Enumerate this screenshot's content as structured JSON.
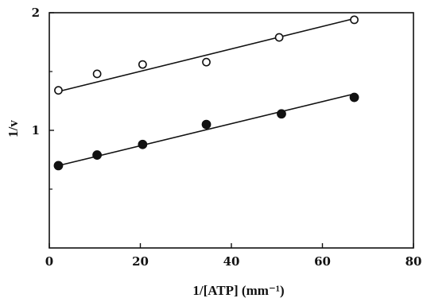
{
  "chart_data": {
    "type": "scatter",
    "xlabel": "1/[ATP] (mm⁻¹)",
    "ylabel": "1/v",
    "xlim": [
      0,
      80
    ],
    "ylim": [
      0,
      2
    ],
    "x_ticks": [
      0,
      20,
      40,
      60,
      80
    ],
    "x_tick_labels": [
      "0",
      "20",
      "40",
      "60",
      "80"
    ],
    "y_ticks": [
      1,
      2
    ],
    "y_tick_labels": [
      "1",
      "2"
    ],
    "minor_y_ticks": [
      0.5,
      1.5
    ],
    "grid": false,
    "series": [
      {
        "marker": "open-circle",
        "x": [
          2.0,
          10.5,
          20.5,
          34.5,
          50.5,
          67.0
        ],
        "y": [
          1.34,
          1.48,
          1.56,
          1.58,
          1.79,
          1.94
        ],
        "fit_line": {
          "x": [
            2.0,
            67.0
          ],
          "y": [
            1.33,
            1.95
          ]
        }
      },
      {
        "marker": "filled-circle",
        "x": [
          2.0,
          10.5,
          20.5,
          34.5,
          51.0,
          67.0
        ],
        "y": [
          0.7,
          0.79,
          0.88,
          1.05,
          1.14,
          1.28
        ],
        "fit_line": {
          "x": [
            2.0,
            67.0
          ],
          "y": [
            0.7,
            1.31
          ]
        }
      }
    ]
  }
}
